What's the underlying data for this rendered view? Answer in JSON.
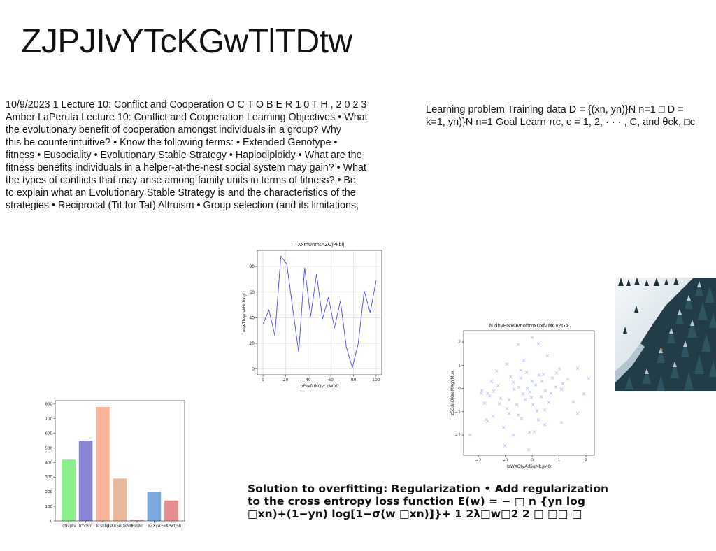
{
  "page": {
    "title": "ZJPJIvYTcKGwTlTDtw"
  },
  "text_blocks": {
    "lecture": {
      "lines": [
        "10/9/2023 1 Lecture 10: Conflict and Cooperation O C T O B E R 1 0 T H , 2 0 2 3",
        "Amber LaPeruta Lecture 10: Conflict and Cooperation Learning Objectives • What",
        "the evolutionary benefit of cooperation amongst individuals in a group? Why",
        "this be counterintuitive? • Know the following terms: • Extended Genotype •",
        "fitness • Eusociality • Evolutionary Stable Strategy • Haplodiploidy • What are the",
        "fitness benefits individuals in a helper-at-the-nest social system may gain? • What",
        "the types of conflicts that may arise among family units in terms of fitness? • Be",
        "to explain what an Evolutionary Stable Strategy is and the characteristics of the",
        "strategies • Reciprocal (Tit for Tat) Altruism • Group selection (and its limitations,"
      ]
    },
    "learning": {
      "lines": [
        "Learning problem Training data D = {(xn, yn)}N n=1 □ D =",
        "k=1, yn)}N n=1 Goal Learn πc, c = 1, 2, · · · , C, and θck, □c"
      ]
    },
    "regularization": {
      "lines": [
        "Solution to overfitting: Regularization • Add regularization",
        "to the cross entropy loss function E(w) = − □ n {yn log",
        "□xn)+(1−yn) log[1−σ(w □xn)]}+ 1 2λ□w□2 2 □ □□ □"
      ]
    }
  },
  "chart_data": [
    {
      "type": "line",
      "title": "TXxmUnmtAZOjPPblj",
      "xlabel": "pPkvfrINQyr cWpC",
      "ylabel": "oewTfvycskHcRxgt",
      "x": [
        0,
        5.26,
        10.53,
        15.79,
        21.05,
        26.32,
        31.58,
        36.84,
        42.11,
        47.37,
        52.63,
        57.89,
        63.16,
        68.42,
        73.68,
        78.95,
        84.21,
        89.47,
        94.74,
        100
      ],
      "series": [
        {
          "values": [
            35,
            46,
            26,
            88,
            82,
            47,
            13,
            79,
            41,
            74,
            39,
            56,
            32,
            53,
            17,
            1,
            20,
            61,
            44,
            69
          ],
          "color": "#4b4bef"
        }
      ],
      "xlim": [
        -5,
        105
      ],
      "ylim": [
        -4.5,
        92.6
      ],
      "xticks": [
        0,
        20,
        40,
        60,
        80,
        100
      ],
      "yticks": [
        0,
        20,
        40,
        60,
        80
      ],
      "grid": true
    },
    {
      "type": "scatter",
      "title": "N dhvHNxOvnoftmxOxfZMCvZGA",
      "xlabel": "IzWXOtyAdSgMkgMQ",
      "ylabel": "zSCdnDKaeMXgYMux",
      "marker": "x",
      "color": "#8c9cf2",
      "points": [
        [
          -2.31,
          -2.0
        ],
        [
          -1.9,
          -0.21
        ],
        [
          -1.87,
          -0.09
        ],
        [
          -1.77,
          -0.63
        ],
        [
          -1.71,
          -1.35
        ],
        [
          -1.66,
          -1.41
        ],
        [
          -1.66,
          -0.21
        ],
        [
          -1.58,
          -0.33
        ],
        [
          -1.51,
          0.3
        ],
        [
          -1.45,
          -1.2
        ],
        [
          -1.43,
          -0.12
        ],
        [
          -1.32,
          0.75
        ],
        [
          -1.27,
          0.12
        ],
        [
          -1.22,
          -0.66
        ],
        [
          -1.17,
          -0.42
        ],
        [
          -1.06,
          -1.68
        ],
        [
          -1.01,
          -2.46
        ],
        [
          -0.94,
          1.05
        ],
        [
          -0.94,
          -0.87
        ],
        [
          -0.86,
          -0.48
        ],
        [
          -0.86,
          -1.08
        ],
        [
          -0.8,
          0.5
        ],
        [
          -0.7,
          0.27
        ],
        [
          -0.7,
          -2.01
        ],
        [
          -0.68,
          -0.03
        ],
        [
          -0.57,
          -0.69
        ],
        [
          -0.52,
          1.89
        ],
        [
          -0.52,
          -1.14
        ],
        [
          -0.49,
          0.05
        ],
        [
          -0.42,
          0.45
        ],
        [
          -0.42,
          0.78
        ],
        [
          -0.39,
          -1.29
        ],
        [
          -0.34,
          -0.24
        ],
        [
          -0.31,
          1.2
        ],
        [
          -0.26,
          -0.48
        ],
        [
          -0.21,
          0.69
        ],
        [
          -0.18,
          0.0
        ],
        [
          -0.13,
          -2.64
        ],
        [
          -0.1,
          -1.89
        ],
        [
          -0.08,
          -0.15
        ],
        [
          -0.03,
          -0.39
        ],
        [
          0.0,
          2.19
        ],
        [
          0.0,
          0.3
        ],
        [
          0.03,
          -0.69
        ],
        [
          0.08,
          -1.86
        ],
        [
          0.13,
          0.15
        ],
        [
          0.18,
          -0.96
        ],
        [
          0.23,
          1.92
        ],
        [
          0.23,
          -1.35
        ],
        [
          0.26,
          0.57
        ],
        [
          0.34,
          -0.36
        ],
        [
          0.36,
          0.3
        ],
        [
          0.42,
          0.6
        ],
        [
          0.47,
          -1.56
        ],
        [
          0.47,
          -0.93
        ],
        [
          0.49,
          -0.09
        ],
        [
          0.57,
          1.41
        ],
        [
          0.62,
          -0.6
        ],
        [
          0.7,
          -0.21
        ],
        [
          0.75,
          0.45
        ],
        [
          0.88,
          0.06
        ],
        [
          0.91,
          0.66
        ],
        [
          1.01,
          0.84
        ],
        [
          1.09,
          -0.03
        ],
        [
          1.09,
          -1.47
        ],
        [
          1.14,
          0.21
        ],
        [
          1.32,
          0.39
        ],
        [
          1.53,
          -0.57
        ],
        [
          1.69,
          0.87
        ],
        [
          1.69,
          -1.08
        ],
        [
          1.92,
          -0.24
        ],
        [
          2.1,
          0.42
        ]
      ],
      "xlim": [
        -2.55,
        2.31
      ],
      "ylim": [
        -2.87,
        2.48
      ],
      "xticks": [
        -2,
        -1,
        0,
        1,
        2
      ],
      "yticks": [
        -2,
        -1,
        0,
        1,
        2
      ],
      "grid": false
    },
    {
      "type": "bar",
      "categories": [
        "lcNvptv",
        "IrYcBm",
        "krsnhjJ",
        "psKnSnOxMQ",
        "Ebsjkr",
        "aZXyA",
        "EkKPwfJSh"
      ],
      "values": [
        420,
        550,
        780,
        290,
        8,
        200,
        140
      ],
      "colors": [
        "#8aee8a",
        "#8a86d6",
        "#fbb49a",
        "#e9b89b",
        "#c8a9a9",
        "#7aa8e0",
        "#e48c8e"
      ],
      "ylim": [
        0,
        823
      ],
      "yticks": [
        0,
        100,
        200,
        300,
        400,
        500,
        600,
        700,
        800
      ],
      "grid": false
    }
  ]
}
